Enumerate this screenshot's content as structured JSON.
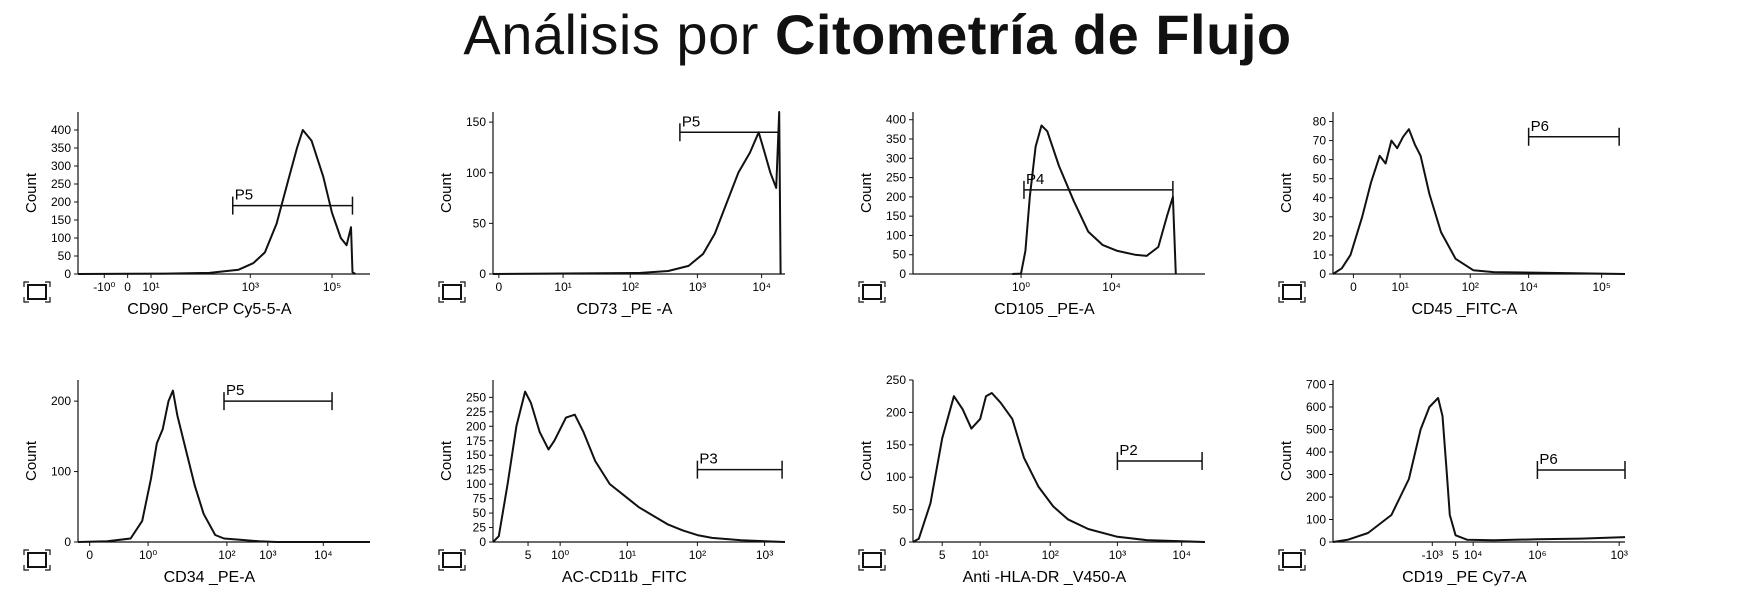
{
  "title": {
    "light": "Análisis por",
    "bold": "Citometría de Flujo"
  },
  "chart_data": [
    {
      "type": "histogram",
      "xlabel": "CD90 _PerCP Cy5-5-A",
      "ylabel": "Count",
      "ylim": [
        0,
        450
      ],
      "yticks": [
        0,
        50,
        100,
        150,
        200,
        250,
        300,
        350,
        400
      ],
      "xticks": [
        "-10⁰",
        "0",
        "10¹",
        "10³",
        "10⁵"
      ],
      "xtick_pos": [
        0.09,
        0.17,
        0.25,
        0.59,
        0.87
      ],
      "curve": [
        [
          0,
          0
        ],
        [
          0.3,
          1
        ],
        [
          0.45,
          3
        ],
        [
          0.55,
          12
        ],
        [
          0.6,
          30
        ],
        [
          0.64,
          60
        ],
        [
          0.68,
          140
        ],
        [
          0.72,
          260
        ],
        [
          0.75,
          350
        ],
        [
          0.77,
          400
        ],
        [
          0.8,
          370
        ],
        [
          0.84,
          270
        ],
        [
          0.87,
          170
        ],
        [
          0.9,
          100
        ],
        [
          0.92,
          80
        ],
        [
          0.935,
          130
        ],
        [
          0.94,
          5
        ],
        [
          0.95,
          0
        ]
      ],
      "gate": {
        "label": "P5",
        "range": [
          0.53,
          0.94
        ],
        "y": 190
      }
    },
    {
      "type": "histogram",
      "xlabel": "CD73 _PE -A",
      "ylabel": "Count",
      "ylim": [
        0,
        160
      ],
      "yticks": [
        0,
        50,
        100,
        150
      ],
      "xticks": [
        "0",
        "10¹",
        "10²",
        "10³",
        "10⁴"
      ],
      "xtick_pos": [
        0.02,
        0.24,
        0.47,
        0.7,
        0.92
      ],
      "curve": [
        [
          0,
          0
        ],
        [
          0.5,
          1
        ],
        [
          0.6,
          3
        ],
        [
          0.67,
          8
        ],
        [
          0.72,
          20
        ],
        [
          0.76,
          40
        ],
        [
          0.8,
          70
        ],
        [
          0.84,
          100
        ],
        [
          0.88,
          120
        ],
        [
          0.91,
          140
        ],
        [
          0.93,
          120
        ],
        [
          0.95,
          100
        ],
        [
          0.97,
          85
        ],
        [
          0.98,
          160
        ],
        [
          0.985,
          0
        ]
      ],
      "gate": {
        "label": "P5",
        "range": [
          0.64,
          0.98
        ],
        "y": 140
      }
    },
    {
      "type": "histogram",
      "xlabel": "CD105 _PE-A",
      "ylabel": "Count",
      "ylim": [
        0,
        420
      ],
      "yticks": [
        0,
        50,
        100,
        150,
        200,
        250,
        300,
        350,
        400
      ],
      "xticks": [
        "10⁰",
        "10⁴"
      ],
      "xtick_pos": [
        0.37,
        0.68
      ],
      "curve": [
        [
          0.34,
          0
        ],
        [
          0.37,
          1
        ],
        [
          0.385,
          60
        ],
        [
          0.4,
          200
        ],
        [
          0.42,
          330
        ],
        [
          0.44,
          385
        ],
        [
          0.46,
          370
        ],
        [
          0.5,
          280
        ],
        [
          0.55,
          190
        ],
        [
          0.6,
          110
        ],
        [
          0.65,
          75
        ],
        [
          0.7,
          60
        ],
        [
          0.76,
          50
        ],
        [
          0.8,
          47
        ],
        [
          0.84,
          70
        ],
        [
          0.87,
          150
        ],
        [
          0.89,
          200
        ],
        [
          0.9,
          0
        ]
      ],
      "gate": {
        "label": "P4",
        "range": [
          0.38,
          0.89
        ],
        "y": 218
      }
    },
    {
      "type": "histogram",
      "xlabel": "CD45 _FITC-A",
      "ylabel": "Count",
      "ylim": [
        0,
        85
      ],
      "yticks": [
        0,
        10,
        20,
        30,
        40,
        50,
        60,
        70,
        80
      ],
      "xticks": [
        "0",
        "10¹",
        "10²",
        "10⁴",
        "10⁵"
      ],
      "xtick_pos": [
        0.07,
        0.23,
        0.47,
        0.67,
        0.92
      ],
      "curve": [
        [
          0,
          0
        ],
        [
          0.03,
          3
        ],
        [
          0.06,
          10
        ],
        [
          0.1,
          30
        ],
        [
          0.13,
          48
        ],
        [
          0.16,
          62
        ],
        [
          0.18,
          58
        ],
        [
          0.2,
          70
        ],
        [
          0.22,
          66
        ],
        [
          0.24,
          72
        ],
        [
          0.26,
          76
        ],
        [
          0.28,
          68
        ],
        [
          0.3,
          62
        ],
        [
          0.33,
          42
        ],
        [
          0.37,
          22
        ],
        [
          0.42,
          8
        ],
        [
          0.48,
          2
        ],
        [
          0.55,
          1
        ],
        [
          1,
          0
        ]
      ],
      "gate": {
        "label": "P6",
        "range": [
          0.67,
          0.98
        ],
        "y": 72
      }
    },
    {
      "type": "histogram",
      "xlabel": "CD34 _PE-A",
      "ylabel": "Count",
      "ylim": [
        0,
        230
      ],
      "yticks": [
        0,
        100,
        200
      ],
      "xticks": [
        "0",
        "10⁰",
        "10²",
        "10³",
        "10⁴"
      ],
      "xtick_pos": [
        0.04,
        0.24,
        0.51,
        0.65,
        0.84
      ],
      "curve": [
        [
          0,
          0
        ],
        [
          0.1,
          1
        ],
        [
          0.18,
          5
        ],
        [
          0.22,
          30
        ],
        [
          0.25,
          90
        ],
        [
          0.27,
          140
        ],
        [
          0.29,
          160
        ],
        [
          0.31,
          200
        ],
        [
          0.325,
          215
        ],
        [
          0.34,
          180
        ],
        [
          0.37,
          130
        ],
        [
          0.4,
          80
        ],
        [
          0.43,
          40
        ],
        [
          0.47,
          10
        ],
        [
          0.5,
          5
        ],
        [
          0.56,
          3
        ],
        [
          0.62,
          1
        ],
        [
          0.68,
          0
        ],
        [
          1,
          0
        ]
      ],
      "gate": {
        "label": "P5",
        "range": [
          0.5,
          0.87
        ],
        "y": 200
      }
    },
    {
      "type": "histogram",
      "xlabel": "AC-CD11b _FITC",
      "ylabel": "Count",
      "ylim": [
        0,
        280
      ],
      "yticks": [
        0,
        25,
        50,
        75,
        100,
        125,
        150,
        175,
        200,
        225,
        250
      ],
      "xticks": [
        "5",
        "10⁰",
        "10¹",
        "10²",
        "10³"
      ],
      "xtick_pos": [
        0.12,
        0.23,
        0.46,
        0.7,
        0.93
      ],
      "curve": [
        [
          0,
          0
        ],
        [
          0.02,
          10
        ],
        [
          0.05,
          100
        ],
        [
          0.08,
          200
        ],
        [
          0.11,
          260
        ],
        [
          0.13,
          240
        ],
        [
          0.16,
          190
        ],
        [
          0.19,
          160
        ],
        [
          0.21,
          175
        ],
        [
          0.25,
          215
        ],
        [
          0.28,
          220
        ],
        [
          0.31,
          190
        ],
        [
          0.35,
          140
        ],
        [
          0.4,
          100
        ],
        [
          0.45,
          80
        ],
        [
          0.5,
          60
        ],
        [
          0.55,
          45
        ],
        [
          0.6,
          30
        ],
        [
          0.65,
          20
        ],
        [
          0.7,
          12
        ],
        [
          0.75,
          7
        ],
        [
          0.85,
          3
        ],
        [
          1,
          0
        ]
      ],
      "gate": {
        "label": "P3",
        "range": [
          0.7,
          0.99
        ],
        "y": 125
      }
    },
    {
      "type": "histogram",
      "xlabel": "Anti -HLA-DR _V450-A",
      "ylabel": "Count",
      "ylim": [
        0,
        250
      ],
      "yticks": [
        0,
        50,
        100,
        150,
        200,
        250
      ],
      "xticks": [
        "5",
        "10¹",
        "10²",
        "10³",
        "10⁴"
      ],
      "xtick_pos": [
        0.1,
        0.23,
        0.47,
        0.7,
        0.92
      ],
      "curve": [
        [
          0,
          0
        ],
        [
          0.02,
          5
        ],
        [
          0.06,
          60
        ],
        [
          0.1,
          160
        ],
        [
          0.14,
          225
        ],
        [
          0.17,
          205
        ],
        [
          0.2,
          175
        ],
        [
          0.23,
          190
        ],
        [
          0.25,
          225
        ],
        [
          0.27,
          230
        ],
        [
          0.3,
          215
        ],
        [
          0.34,
          190
        ],
        [
          0.38,
          130
        ],
        [
          0.43,
          85
        ],
        [
          0.48,
          55
        ],
        [
          0.53,
          35
        ],
        [
          0.6,
          20
        ],
        [
          0.7,
          8
        ],
        [
          0.8,
          3
        ],
        [
          1,
          0
        ]
      ],
      "gate": {
        "label": "P2",
        "range": [
          0.7,
          0.99
        ],
        "y": 125
      }
    },
    {
      "type": "histogram",
      "xlabel": "CD19 _PE Cy7-A",
      "ylabel": "Count",
      "ylim": [
        0,
        720
      ],
      "yticks": [
        0,
        100,
        200,
        300,
        400,
        500,
        600,
        700
      ],
      "xticks": [
        "-10³",
        "5",
        "10⁴",
        "10⁶",
        "10³"
      ],
      "xtick_pos": [
        0.34,
        0.42,
        0.48,
        0.7,
        0.98
      ],
      "curve": [
        [
          0,
          0
        ],
        [
          0.05,
          10
        ],
        [
          0.12,
          40
        ],
        [
          0.2,
          120
        ],
        [
          0.26,
          280
        ],
        [
          0.3,
          500
        ],
        [
          0.33,
          600
        ],
        [
          0.36,
          640
        ],
        [
          0.375,
          560
        ],
        [
          0.39,
          300
        ],
        [
          0.4,
          120
        ],
        [
          0.42,
          30
        ],
        [
          0.46,
          10
        ],
        [
          0.55,
          8
        ],
        [
          0.7,
          12
        ],
        [
          0.85,
          15
        ],
        [
          1,
          22
        ]
      ],
      "gate": {
        "label": "P6",
        "range": [
          0.7,
          1.0
        ],
        "y": 320
      }
    }
  ]
}
